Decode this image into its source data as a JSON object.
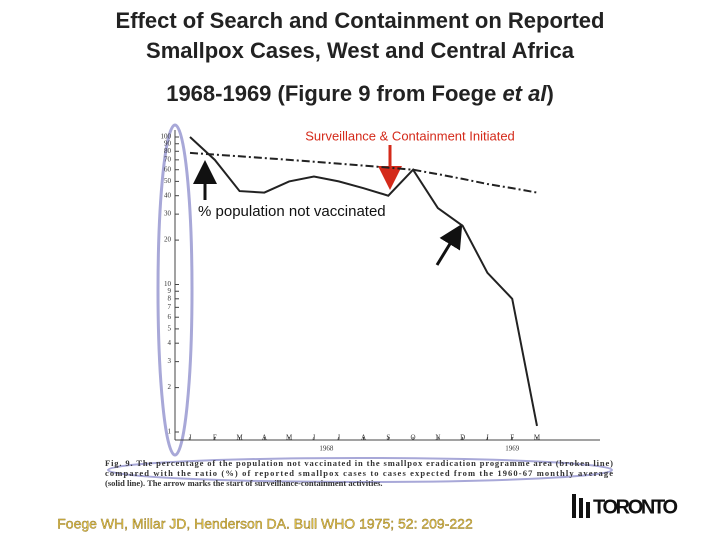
{
  "chart_data": {
    "type": "line",
    "title": [
      "Effect of Search and Containment on Reported",
      "Smallpox Cases,  West and Central Africa"
    ],
    "subtitle": [
      "1968-1969 (Figure 9 from Foege ",
      "et al",
      ")"
    ],
    "categories": [
      "J",
      "F",
      "M",
      "A",
      "M",
      "J",
      "J",
      "A",
      "S",
      "O",
      "N",
      "D",
      "J",
      "F",
      "M"
    ],
    "x_groups": [
      {
        "label": "1968",
        "start": 0,
        "end": 11
      },
      {
        "label": "1969",
        "start": 12,
        "end": 14
      }
    ],
    "series": [
      {
        "name": "Reported cases (% of expected)",
        "color": "#222222",
        "style": "solid",
        "values": [
          100,
          70,
          43,
          42,
          50,
          54,
          50,
          45,
          40,
          60,
          33,
          25,
          12,
          8,
          1.1
        ]
      },
      {
        "name": "% population not vaccinated",
        "color": "#222222",
        "style": "dashed",
        "values": [
          78,
          76,
          74,
          72,
          70,
          68,
          66,
          64,
          62,
          60,
          56,
          52,
          48,
          45,
          42
        ]
      }
    ],
    "yscale": "log",
    "ylim": [
      1,
      100
    ],
    "yticks": [
      1,
      2,
      3,
      4,
      5,
      6,
      7,
      8,
      9,
      10,
      20,
      30,
      40,
      50,
      60,
      70,
      80,
      90,
      100
    ],
    "annotations": [
      "Surveillance  & Containment Initiated",
      "% population not vaccinated"
    ],
    "legend": false,
    "grid": false
  },
  "caption": [
    "Fig. 9. The percentage of the population not vaccinated in the smallpox eradication programme area (broken line)",
    "compared with the ratio (%) of reported smallpox cases to cases expected from the 1960-67 monthly average",
    "(solid line). The arrow marks the start of surveillance-containment activities."
  ],
  "citation": "Foege WH, Millar JD, Henderson DA. Bull WHO 1975; 52: 209-222",
  "logo": "TORONTO"
}
